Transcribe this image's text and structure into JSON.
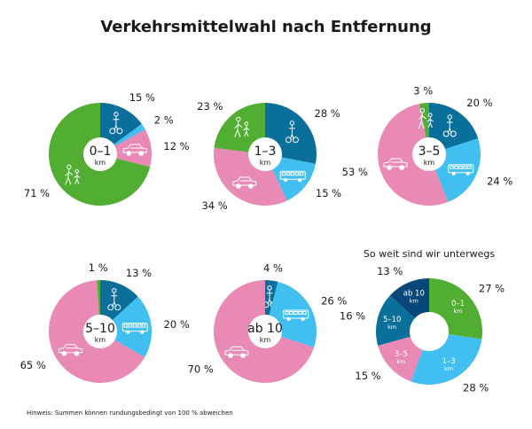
{
  "title": "Verkehrsmittelwahl nach Entfernung",
  "footnote": "Hinweis: Summen können rundungsbedingt von 100 % abweichen",
  "colors": {
    "walk": "#52ae32",
    "bike": "#0b6f9b",
    "car": "#e889b6",
    "public": "#41bff0"
  },
  "icons": {
    "walk": "pedestrian-icon",
    "bike": "bicycle-icon",
    "car": "car-icon",
    "public": "bus-icon"
  },
  "chart_data": [
    {
      "type": "pie",
      "center_main": "0–1",
      "center_sub": "km",
      "slices": [
        {
          "mode": "bike",
          "value": 15,
          "label": "15 %"
        },
        {
          "mode": "public",
          "value": 2,
          "label": "2 %"
        },
        {
          "mode": "car",
          "value": 12,
          "label": "12 %"
        },
        {
          "mode": "walk",
          "value": 71,
          "label": "71 %"
        }
      ]
    },
    {
      "type": "pie",
      "center_main": "1–3",
      "center_sub": "km",
      "slices": [
        {
          "mode": "bike",
          "value": 28,
          "label": "28 %"
        },
        {
          "mode": "public",
          "value": 15,
          "label": "15 %"
        },
        {
          "mode": "car",
          "value": 34,
          "label": "34 %"
        },
        {
          "mode": "walk",
          "value": 23,
          "label": "23 %"
        }
      ]
    },
    {
      "type": "pie",
      "center_main": "3–5",
      "center_sub": "km",
      "slices": [
        {
          "mode": "bike",
          "value": 20,
          "label": "20 %"
        },
        {
          "mode": "public",
          "value": 24,
          "label": "24 %"
        },
        {
          "mode": "car",
          "value": 53,
          "label": "53 %"
        },
        {
          "mode": "walk",
          "value": 3,
          "label": "3 %"
        }
      ]
    },
    {
      "type": "pie",
      "center_main": "5–10",
      "center_sub": "km",
      "slices": [
        {
          "mode": "bike",
          "value": 13,
          "label": "13 %"
        },
        {
          "mode": "public",
          "value": 20,
          "label": "20 %"
        },
        {
          "mode": "car",
          "value": 65,
          "label": "65 %"
        },
        {
          "mode": "walk",
          "value": 1,
          "label": "1 %"
        }
      ]
    },
    {
      "type": "pie",
      "center_main": "ab 10",
      "center_sub": "km",
      "slices": [
        {
          "mode": "bike",
          "value": 4,
          "label": "4 %"
        },
        {
          "mode": "public",
          "value": 26,
          "label": "26 %"
        },
        {
          "mode": "car",
          "value": 70,
          "label": "70 %"
        }
      ]
    },
    {
      "type": "pie",
      "title": "So weit sind wir unterwegs",
      "slices": [
        {
          "value": 27,
          "label": "27 %",
          "seg_main": "0–1",
          "seg_sub": "km",
          "color": "#52ae32"
        },
        {
          "value": 28,
          "label": "28 %",
          "seg_main": "1–3",
          "seg_sub": "km",
          "color": "#41bff0"
        },
        {
          "value": 15,
          "label": "15 %",
          "seg_main": "3–5",
          "seg_sub": "km",
          "color": "#e889b6"
        },
        {
          "value": 16,
          "label": "16 %",
          "seg_main": "5–10",
          "seg_sub": "km",
          "color": "#0b6f9b"
        },
        {
          "value": 13,
          "label": "13 %",
          "seg_main": "ab 10",
          "seg_sub": "km",
          "color": "#07477a"
        }
      ]
    }
  ]
}
